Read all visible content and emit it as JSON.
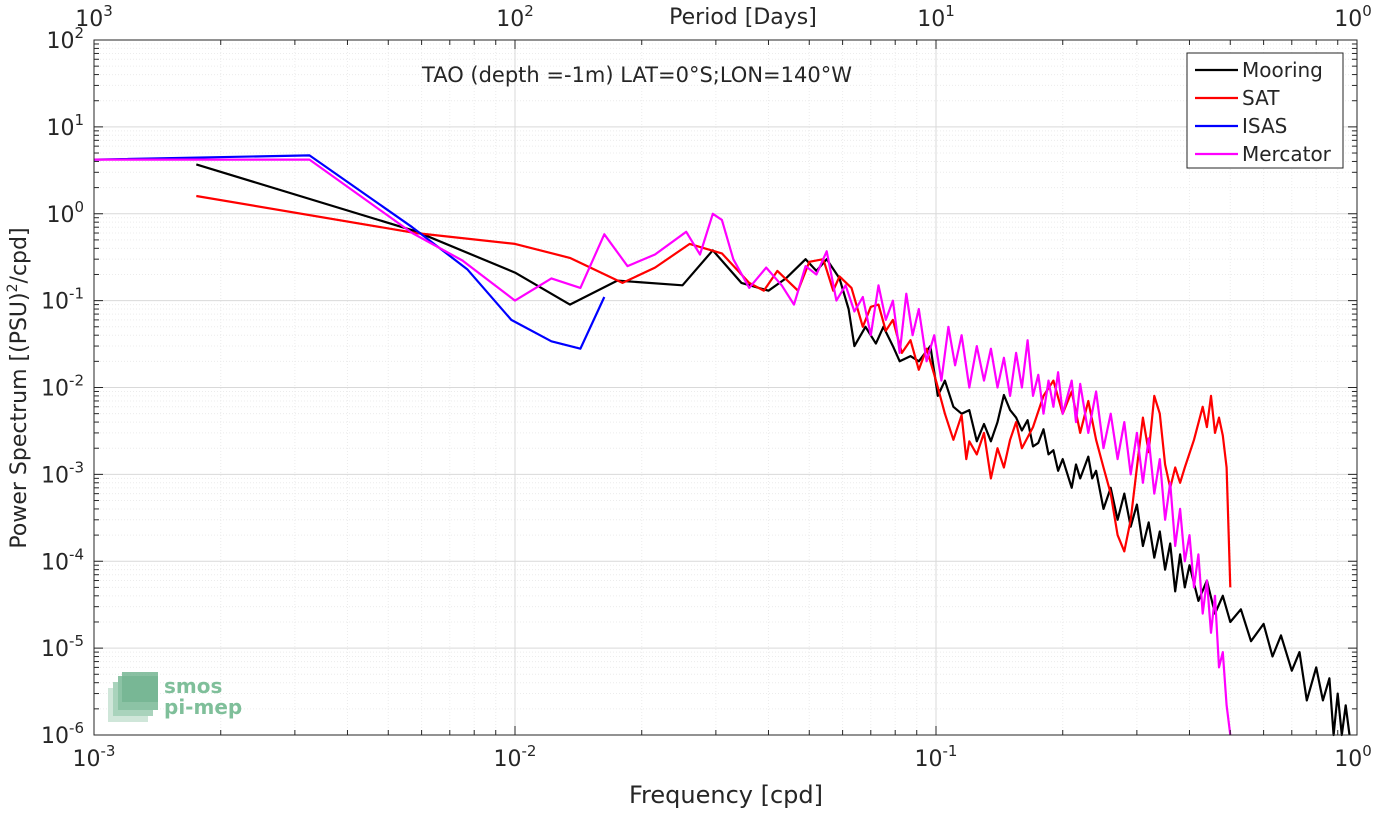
{
  "chart_data": {
    "type": "line",
    "title": "TAO (depth =-1m) LAT=0°S;LON=140°W",
    "xlabel": "Frequency [cpd]",
    "x2label": "Period [Days]",
    "ylabel": "Power Spectrum [(PSU)",
    "ylabel_sup": "2",
    "ylabel_end": "/cpd]",
    "xscale": "log",
    "yscale": "log",
    "xlim": [
      0.001,
      1
    ],
    "ylim": [
      1e-06,
      100
    ],
    "grid": true,
    "legend_position": "top-right",
    "x_ticks": [
      {
        "base": "10",
        "exp": "-3",
        "value": 0.001
      },
      {
        "base": "10",
        "exp": "-2",
        "value": 0.01
      },
      {
        "base": "10",
        "exp": "-1",
        "value": 0.1
      },
      {
        "base": "10",
        "exp": "0",
        "value": 1
      }
    ],
    "x2_ticks": [
      {
        "base": "10",
        "exp": "3",
        "value": 0.001
      },
      {
        "base": "10",
        "exp": "2",
        "value": 0.01
      },
      {
        "base": "10",
        "exp": "1",
        "value": 0.1
      },
      {
        "base": "10",
        "exp": "0",
        "value": 1
      }
    ],
    "y_ticks": [
      {
        "base": "10",
        "exp": "2",
        "value": 100
      },
      {
        "base": "10",
        "exp": "1",
        "value": 10
      },
      {
        "base": "10",
        "exp": "0",
        "value": 1
      },
      {
        "base": "10",
        "exp": "-1",
        "value": 0.1
      },
      {
        "base": "10",
        "exp": "-2",
        "value": 0.01
      },
      {
        "base": "10",
        "exp": "-3",
        "value": 0.001
      },
      {
        "base": "10",
        "exp": "-4",
        "value": 0.0001
      },
      {
        "base": "10",
        "exp": "-5",
        "value": 1e-05
      },
      {
        "base": "10",
        "exp": "-6",
        "value": 1e-06
      }
    ],
    "series": [
      {
        "name": "Mooring",
        "color": "#000000",
        "points": [
          [
            0.00175,
            3.7
          ],
          [
            0.0058,
            0.63
          ],
          [
            0.01,
            0.21
          ],
          [
            0.0135,
            0.09
          ],
          [
            0.0175,
            0.17
          ],
          [
            0.025,
            0.15
          ],
          [
            0.0295,
            0.38
          ],
          [
            0.0345,
            0.16
          ],
          [
            0.04,
            0.13
          ],
          [
            0.044,
            0.18
          ],
          [
            0.049,
            0.3
          ],
          [
            0.052,
            0.22
          ],
          [
            0.055,
            0.3
          ],
          [
            0.059,
            0.18
          ],
          [
            0.062,
            0.08
          ],
          [
            0.064,
            0.03
          ],
          [
            0.068,
            0.05
          ],
          [
            0.072,
            0.032
          ],
          [
            0.075,
            0.05
          ],
          [
            0.079,
            0.03
          ],
          [
            0.082,
            0.02
          ],
          [
            0.087,
            0.023
          ],
          [
            0.091,
            0.02
          ],
          [
            0.097,
            0.03
          ],
          [
            0.101,
            0.008
          ],
          [
            0.105,
            0.012
          ],
          [
            0.11,
            0.006
          ],
          [
            0.115,
            0.005
          ],
          [
            0.12,
            0.0055
          ],
          [
            0.125,
            0.0024
          ],
          [
            0.13,
            0.0038
          ],
          [
            0.135,
            0.0024
          ],
          [
            0.14,
            0.004
          ],
          [
            0.145,
            0.0082
          ],
          [
            0.15,
            0.0055
          ],
          [
            0.155,
            0.0045
          ],
          [
            0.16,
            0.0032
          ],
          [
            0.165,
            0.0042
          ],
          [
            0.17,
            0.0021
          ],
          [
            0.175,
            0.0023
          ],
          [
            0.18,
            0.0033
          ],
          [
            0.185,
            0.0017
          ],
          [
            0.19,
            0.0019
          ],
          [
            0.195,
            0.0011
          ],
          [
            0.2,
            0.0015
          ],
          [
            0.21,
            0.0007
          ],
          [
            0.215,
            0.0013
          ],
          [
            0.22,
            0.0009
          ],
          [
            0.23,
            0.0016
          ],
          [
            0.235,
            0.0009
          ],
          [
            0.24,
            0.0011
          ],
          [
            0.25,
            0.0004
          ],
          [
            0.26,
            0.0007
          ],
          [
            0.27,
            0.0003
          ],
          [
            0.28,
            0.0006
          ],
          [
            0.29,
            0.00025
          ],
          [
            0.3,
            0.00045
          ],
          [
            0.31,
            0.00015
          ],
          [
            0.32,
            0.00028
          ],
          [
            0.33,
            0.00011
          ],
          [
            0.34,
            0.00022
          ],
          [
            0.35,
            8e-05
          ],
          [
            0.36,
            0.00016
          ],
          [
            0.37,
            4.5e-05
          ],
          [
            0.38,
            0.00012
          ],
          [
            0.39,
            5e-05
          ],
          [
            0.4,
            9e-05
          ],
          [
            0.42,
            3.5e-05
          ],
          [
            0.44,
            6e-05
          ],
          [
            0.46,
            2.5e-05
          ],
          [
            0.48,
            4e-05
          ],
          [
            0.5,
            2e-05
          ],
          [
            0.53,
            2.8e-05
          ],
          [
            0.56,
            1.2e-05
          ],
          [
            0.6,
            1.9e-05
          ],
          [
            0.63,
            8e-06
          ],
          [
            0.66,
            1.4e-05
          ],
          [
            0.7,
            5.5e-06
          ],
          [
            0.73,
            9e-06
          ],
          [
            0.76,
            2.5e-06
          ],
          [
            0.8,
            6e-06
          ],
          [
            0.83,
            2.5e-06
          ],
          [
            0.86,
            4.5e-06
          ],
          [
            0.88,
            1e-06
          ],
          [
            0.9,
            3e-06
          ],
          [
            0.92,
            1e-06
          ],
          [
            0.94,
            2.2e-06
          ],
          [
            0.96,
            1e-06
          ]
        ]
      },
      {
        "name": "SAT",
        "color": "#ff0000",
        "points": [
          [
            0.00175,
            1.6
          ],
          [
            0.0058,
            0.6
          ],
          [
            0.01,
            0.45
          ],
          [
            0.0135,
            0.31
          ],
          [
            0.018,
            0.16
          ],
          [
            0.0215,
            0.24
          ],
          [
            0.026,
            0.45
          ],
          [
            0.031,
            0.35
          ],
          [
            0.036,
            0.16
          ],
          [
            0.039,
            0.13
          ],
          [
            0.042,
            0.22
          ],
          [
            0.047,
            0.13
          ],
          [
            0.05,
            0.28
          ],
          [
            0.054,
            0.3
          ],
          [
            0.057,
            0.13
          ],
          [
            0.059,
            0.19
          ],
          [
            0.063,
            0.14
          ],
          [
            0.067,
            0.05
          ],
          [
            0.07,
            0.085
          ],
          [
            0.073,
            0.09
          ],
          [
            0.076,
            0.045
          ],
          [
            0.079,
            0.06
          ],
          [
            0.083,
            0.025
          ],
          [
            0.087,
            0.035
          ],
          [
            0.091,
            0.016
          ],
          [
            0.095,
            0.028
          ],
          [
            0.1,
            0.012
          ],
          [
            0.105,
            0.005
          ],
          [
            0.11,
            0.0025
          ],
          [
            0.115,
            0.0048
          ],
          [
            0.118,
            0.0015
          ],
          [
            0.12,
            0.0024
          ],
          [
            0.125,
            0.0017
          ],
          [
            0.13,
            0.003
          ],
          [
            0.135,
            0.0009
          ],
          [
            0.14,
            0.002
          ],
          [
            0.145,
            0.0012
          ],
          [
            0.15,
            0.0025
          ],
          [
            0.155,
            0.004
          ],
          [
            0.16,
            0.002
          ],
          [
            0.17,
            0.0035
          ],
          [
            0.18,
            0.008
          ],
          [
            0.19,
            0.012
          ],
          [
            0.2,
            0.005
          ],
          [
            0.21,
            0.009
          ],
          [
            0.22,
            0.003
          ],
          [
            0.23,
            0.007
          ],
          [
            0.24,
            0.0025
          ],
          [
            0.25,
            0.0012
          ],
          [
            0.26,
            0.0006
          ],
          [
            0.27,
            0.0002
          ],
          [
            0.28,
            0.00013
          ],
          [
            0.29,
            0.0003
          ],
          [
            0.3,
            0.0012
          ],
          [
            0.31,
            0.0045
          ],
          [
            0.32,
            0.0018
          ],
          [
            0.33,
            0.008
          ],
          [
            0.34,
            0.005
          ],
          [
            0.35,
            0.0013
          ],
          [
            0.36,
            0.0007
          ],
          [
            0.37,
            0.0012
          ],
          [
            0.38,
            0.0008
          ],
          [
            0.39,
            0.0012
          ],
          [
            0.41,
            0.0025
          ],
          [
            0.43,
            0.006
          ],
          [
            0.44,
            0.0035
          ],
          [
            0.45,
            0.008
          ],
          [
            0.46,
            0.003
          ],
          [
            0.47,
            0.0045
          ],
          [
            0.48,
            0.0028
          ],
          [
            0.49,
            0.0012
          ],
          [
            0.5,
            5e-05
          ]
        ]
      },
      {
        "name": "ISAS",
        "color": "#0000ff",
        "points": [
          [
            0.001,
            4.2
          ],
          [
            0.00325,
            4.7
          ],
          [
            0.0057,
            0.7
          ],
          [
            0.0077,
            0.23
          ],
          [
            0.0098,
            0.06
          ],
          [
            0.0122,
            0.034
          ],
          [
            0.0143,
            0.028
          ],
          [
            0.0163,
            0.11
          ]
        ]
      },
      {
        "name": "Mercator",
        "color": "#ff00ff",
        "points": [
          [
            0.001,
            4.2
          ],
          [
            0.00325,
            4.2
          ],
          [
            0.0057,
            0.6
          ],
          [
            0.0075,
            0.29
          ],
          [
            0.01,
            0.1
          ],
          [
            0.0122,
            0.18
          ],
          [
            0.0143,
            0.14
          ],
          [
            0.0163,
            0.58
          ],
          [
            0.0185,
            0.25
          ],
          [
            0.0215,
            0.34
          ],
          [
            0.0255,
            0.62
          ],
          [
            0.0275,
            0.34
          ],
          [
            0.0295,
            1.0
          ],
          [
            0.031,
            0.85
          ],
          [
            0.033,
            0.3
          ],
          [
            0.036,
            0.14
          ],
          [
            0.0395,
            0.24
          ],
          [
            0.043,
            0.15
          ],
          [
            0.046,
            0.09
          ],
          [
            0.049,
            0.25
          ],
          [
            0.052,
            0.2
          ],
          [
            0.055,
            0.37
          ],
          [
            0.058,
            0.1
          ],
          [
            0.061,
            0.15
          ],
          [
            0.064,
            0.075
          ],
          [
            0.067,
            0.11
          ],
          [
            0.07,
            0.04
          ],
          [
            0.073,
            0.15
          ],
          [
            0.076,
            0.06
          ],
          [
            0.079,
            0.1
          ],
          [
            0.082,
            0.025
          ],
          [
            0.085,
            0.12
          ],
          [
            0.088,
            0.04
          ],
          [
            0.091,
            0.08
          ],
          [
            0.095,
            0.02
          ],
          [
            0.099,
            0.04
          ],
          [
            0.103,
            0.012
          ],
          [
            0.107,
            0.05
          ],
          [
            0.111,
            0.018
          ],
          [
            0.115,
            0.04
          ],
          [
            0.12,
            0.01
          ],
          [
            0.125,
            0.03
          ],
          [
            0.13,
            0.012
          ],
          [
            0.135,
            0.028
          ],
          [
            0.14,
            0.01
          ],
          [
            0.145,
            0.022
          ],
          [
            0.15,
            0.008
          ],
          [
            0.155,
            0.025
          ],
          [
            0.16,
            0.01
          ],
          [
            0.165,
            0.035
          ],
          [
            0.17,
            0.008
          ],
          [
            0.175,
            0.014
          ],
          [
            0.18,
            0.005
          ],
          [
            0.185,
            0.012
          ],
          [
            0.19,
            0.006
          ],
          [
            0.195,
            0.015
          ],
          [
            0.2,
            0.005
          ],
          [
            0.21,
            0.012
          ],
          [
            0.215,
            0.004
          ],
          [
            0.22,
            0.011
          ],
          [
            0.23,
            0.003
          ],
          [
            0.24,
            0.009
          ],
          [
            0.25,
            0.002
          ],
          [
            0.26,
            0.005
          ],
          [
            0.27,
            0.0015
          ],
          [
            0.28,
            0.004
          ],
          [
            0.29,
            0.001
          ],
          [
            0.3,
            0.003
          ],
          [
            0.31,
            0.0008
          ],
          [
            0.32,
            0.0026
          ],
          [
            0.33,
            0.0006
          ],
          [
            0.34,
            0.0015
          ],
          [
            0.35,
            0.0003
          ],
          [
            0.36,
            0.0008
          ],
          [
            0.37,
            0.00015
          ],
          [
            0.38,
            0.0004
          ],
          [
            0.39,
            0.0001
          ],
          [
            0.4,
            0.0002
          ],
          [
            0.41,
            5e-05
          ],
          [
            0.42,
            0.00012
          ],
          [
            0.43,
            2.5e-05
          ],
          [
            0.44,
            6e-05
          ],
          [
            0.45,
            1.5e-05
          ],
          [
            0.46,
            4e-05
          ],
          [
            0.47,
            6e-06
          ],
          [
            0.48,
            9e-06
          ],
          [
            0.49,
            2.2e-06
          ],
          [
            0.5,
            1e-06
          ]
        ]
      }
    ]
  },
  "watermark": {
    "line1": "smos",
    "line2": "pi-mep"
  }
}
